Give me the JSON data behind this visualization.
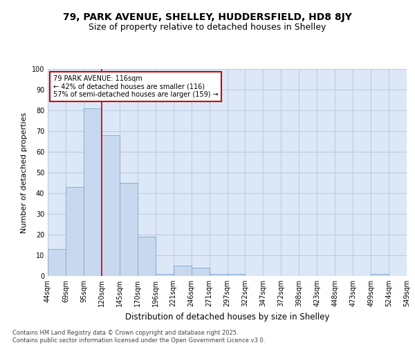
{
  "title1": "79, PARK AVENUE, SHELLEY, HUDDERSFIELD, HD8 8JY",
  "title2": "Size of property relative to detached houses in Shelley",
  "xlabel": "Distribution of detached houses by size in Shelley",
  "ylabel": "Number of detached properties",
  "bar_values": [
    13,
    43,
    81,
    68,
    45,
    19,
    1,
    5,
    4,
    1,
    1,
    0,
    0,
    0,
    0,
    0,
    0,
    0,
    1,
    0
  ],
  "categories": [
    "44sqm",
    "69sqm",
    "95sqm",
    "120sqm",
    "145sqm",
    "170sqm",
    "196sqm",
    "221sqm",
    "246sqm",
    "271sqm",
    "297sqm",
    "322sqm",
    "347sqm",
    "372sqm",
    "398sqm",
    "423sqm",
    "448sqm",
    "473sqm",
    "499sqm",
    "524sqm",
    "549sqm"
  ],
  "bar_color": "#c8d8ee",
  "bar_edge_color": "#7aaad0",
  "bar_width": 1.0,
  "vline_x": 3,
  "vline_color": "#cc0000",
  "annotation_text": "79 PARK AVENUE: 116sqm\n← 42% of detached houses are smaller (116)\n57% of semi-detached houses are larger (159) →",
  "annotation_box_color": "#ffffff",
  "annotation_box_edge": "#cc0000",
  "ylim": [
    0,
    100
  ],
  "yticks": [
    0,
    10,
    20,
    30,
    40,
    50,
    60,
    70,
    80,
    90,
    100
  ],
  "grid_color": "#c0cce0",
  "background_color": "#dce8f8",
  "fig_background": "#ffffff",
  "footer": "Contains HM Land Registry data © Crown copyright and database right 2025.\nContains public sector information licensed under the Open Government Licence v3.0.",
  "title_fontsize": 10,
  "subtitle_fontsize": 9,
  "tick_fontsize": 7,
  "ylabel_fontsize": 8,
  "xlabel_fontsize": 8.5,
  "footer_fontsize": 6
}
